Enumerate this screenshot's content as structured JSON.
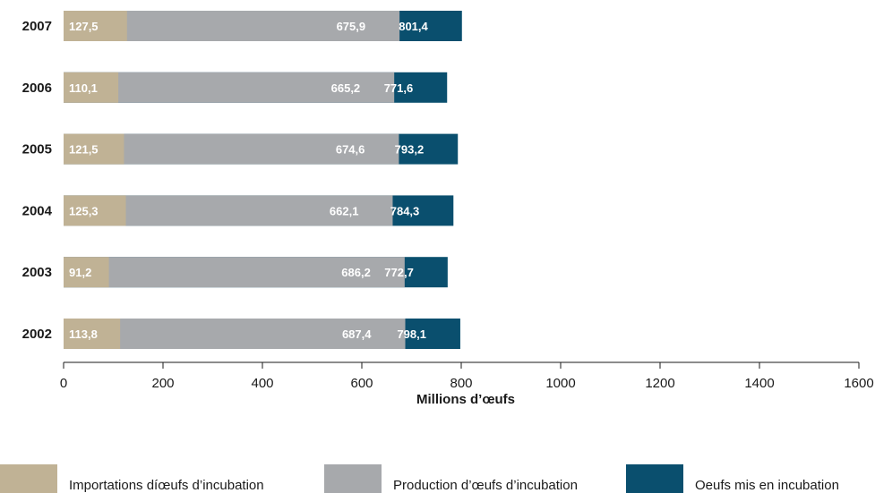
{
  "chart_data": {
    "type": "bar",
    "orientation": "horizontal",
    "stacking": "overlapping-from-zero",
    "categories": [
      "2007",
      "2006",
      "2005",
      "2004",
      "2003",
      "2002"
    ],
    "series": [
      {
        "name": "Oeufs mis en incubation",
        "color": "#0a4f6e",
        "values": [
          801.4,
          771.6,
          793.2,
          784.3,
          772.7,
          798.1
        ],
        "labels": [
          "801,4",
          "771,6",
          "793,2",
          "784,3",
          "772,7",
          "798,1"
        ]
      },
      {
        "name": "Production d’œufs d’incubation",
        "color": "#a7a9ac",
        "values": [
          675.9,
          665.2,
          674.6,
          662.1,
          686.2,
          687.4
        ],
        "labels": [
          "675,9",
          "665,2",
          "674,6",
          "662,1",
          "686,2",
          "687,4"
        ]
      },
      {
        "name": "Importations díœufs d’incubation",
        "color": "#c0b295",
        "values": [
          127.5,
          110.1,
          121.5,
          125.3,
          91.2,
          113.8
        ],
        "labels": [
          "127,5",
          "110,1",
          "121,5",
          "125,3",
          "91,2",
          "113,8"
        ]
      }
    ],
    "xlabel": "Millions d’œufs",
    "xlim": [
      0,
      1600
    ],
    "xticks": [
      0,
      200,
      400,
      600,
      800,
      1000,
      1200,
      1400,
      1600
    ],
    "xtick_labels": [
      "0",
      "200",
      "400",
      "600",
      "800",
      "1000",
      "1200",
      "1400",
      "1600"
    ],
    "grid": false,
    "legend": {
      "position": "bottom",
      "entries": [
        {
          "label": "Importations díœufs d’incubation",
          "color": "#c0b295"
        },
        {
          "label": "Production d’œufs d’incubation",
          "color": "#a7a9ac"
        },
        {
          "label": "Oeufs mis en incubation",
          "color": "#0a4f6e"
        }
      ]
    }
  }
}
